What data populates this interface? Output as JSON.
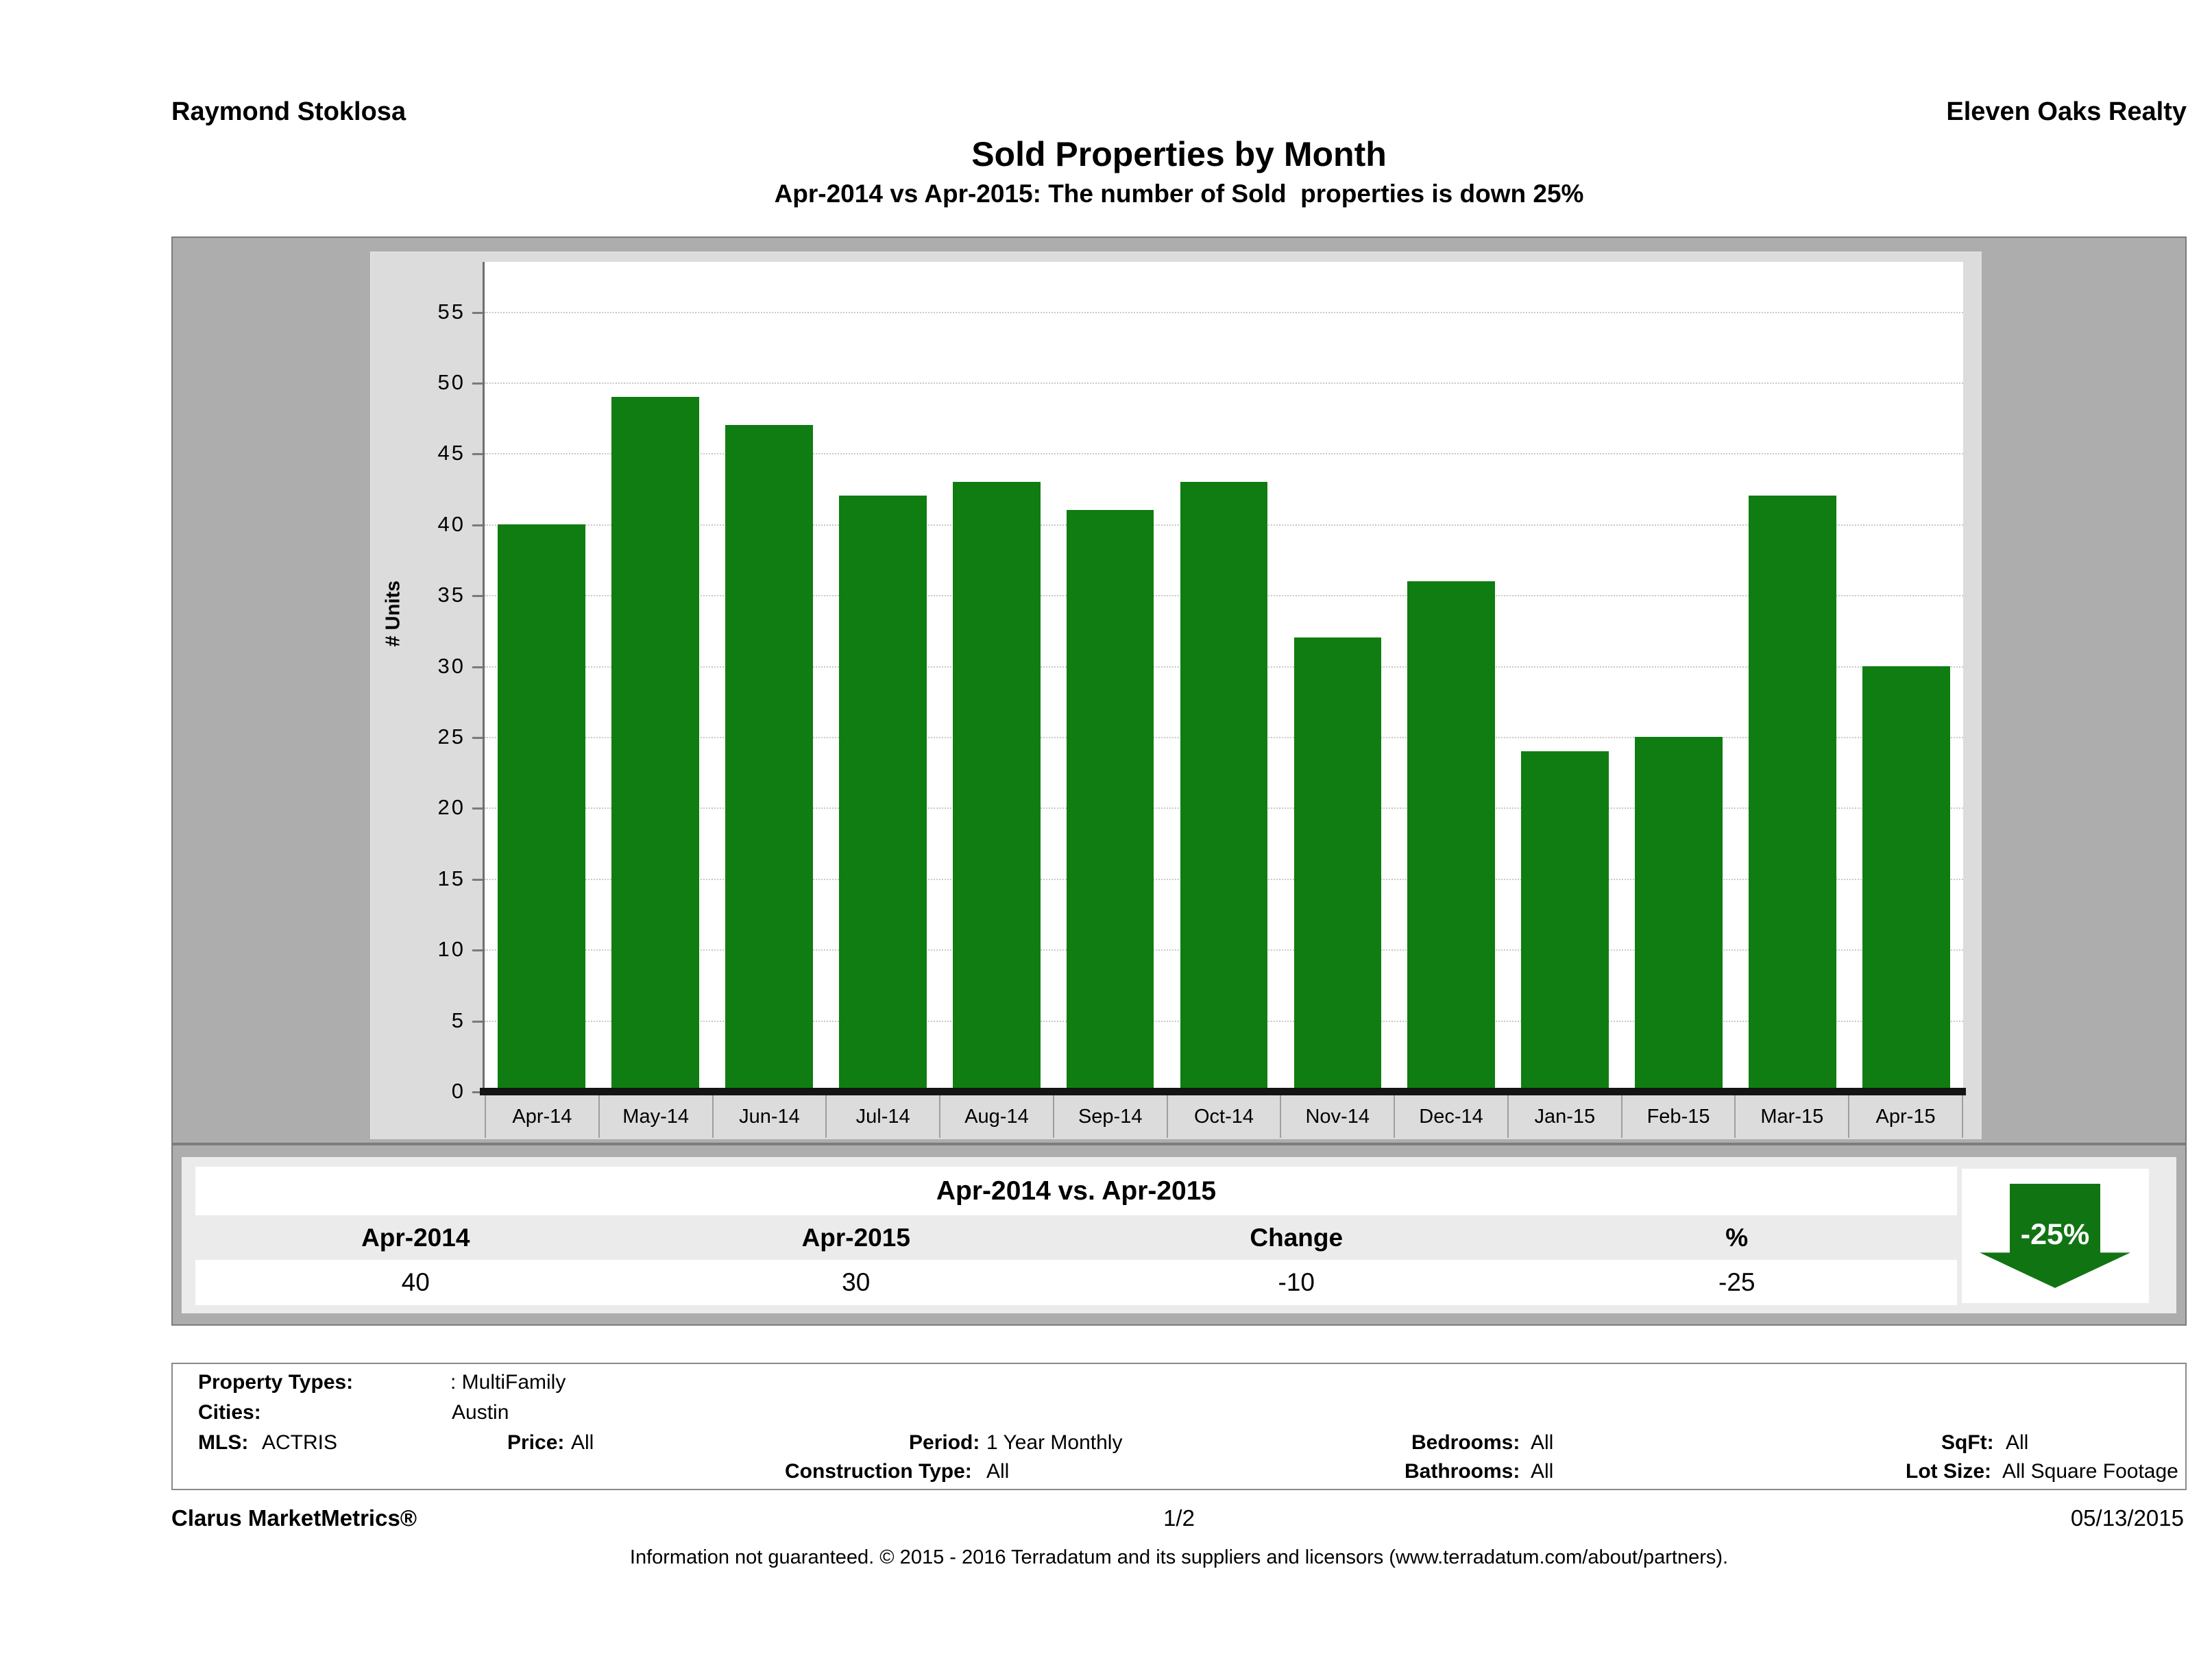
{
  "header": {
    "left": "Raymond Stoklosa",
    "right": "Eleven Oaks Realty"
  },
  "title": "Sold Properties by Month",
  "subtitle": "Apr-2014 vs Apr-2015: The number of Sold  properties is down 25%",
  "chart_data": {
    "type": "bar",
    "title": "Sold Properties by Month",
    "categories": [
      "Apr-14",
      "May-14",
      "Jun-14",
      "Jul-14",
      "Aug-14",
      "Sep-14",
      "Oct-14",
      "Nov-14",
      "Dec-14",
      "Jan-15",
      "Feb-15",
      "Mar-15",
      "Apr-15"
    ],
    "values": [
      40,
      49,
      47,
      42,
      43,
      41,
      43,
      32,
      36,
      24,
      25,
      42,
      30
    ],
    "xlabel": "",
    "ylabel": "# Units",
    "ylim": [
      0,
      58.75
    ],
    "yticks": [
      0,
      5,
      10,
      15,
      20,
      25,
      30,
      35,
      40,
      45,
      50,
      55
    ],
    "grid": "horizontal-dotted",
    "legend": "none",
    "bar_color": "#0f7d11"
  },
  "comparison": {
    "title": "Apr-2014 vs. Apr-2015",
    "headers": [
      "Apr-2014",
      "Apr-2015",
      "Change",
      "%"
    ],
    "values": [
      "40",
      "30",
      "-10",
      "-25"
    ],
    "arrow_label": "-25%"
  },
  "filters": {
    "property_types_label": "Property Types:",
    "property_types_value": ": MultiFamily",
    "cities_label": "Cities:",
    "cities_value": "Austin",
    "mls_label": "MLS:",
    "mls_value": "ACTRIS",
    "price_label": "Price:",
    "price_value": "All",
    "period_label": "Period:",
    "period_value": "1 Year Monthly",
    "construction_label": "Construction Type:",
    "construction_value": "All",
    "bedrooms_label": "Bedrooms:",
    "bedrooms_value": "All",
    "bathrooms_label": "Bathrooms:",
    "bathrooms_value": "All",
    "sqft_label": "SqFt:",
    "sqft_value": "All",
    "lot_label": "Lot Size:",
    "lot_value": "All Square Footage"
  },
  "footer": {
    "brand": "Clarus MarketMetrics®",
    "page": "1/2",
    "date": "05/13/2015",
    "disclaimer": "Information not guaranteed. © 2015 - 2016 Terradatum and its suppliers and licensors (www.terradatum.com/about/partners)."
  },
  "colors": {
    "bar_green": "#0f7d11",
    "arrow_green": "#117413",
    "panel_gray": "#adadad",
    "surface_gray": "#dcdcdc",
    "table_gray": "#ebebeb"
  }
}
